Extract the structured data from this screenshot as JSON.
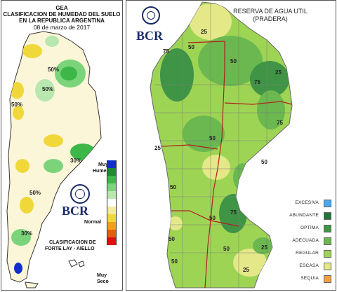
{
  "left_map": {
    "title_lines": [
      "GEA",
      "CLASIFICACION DE HUMEDAD DEL SUELO",
      "EN LA REPUBLICA ARGENTINA"
    ],
    "date": "08 de marzo de 2017",
    "labels": {
      "very_wet_1": "Muy",
      "very_wet_2": "Humedo",
      "normal": "Normal",
      "very_dry_1": "Muy",
      "very_dry_2": "Seco"
    },
    "classification_line1": "CLASIFICACION DE",
    "classification_line2": "FORTE LAY - AIELLO",
    "logo_text": "BCR",
    "isolines": [
      "50%",
      "50%",
      "50%",
      "30%",
      "30%",
      "50%"
    ],
    "scale_colors": [
      "#1030c8",
      "#1f8a2e",
      "#3bb848",
      "#7cd47a",
      "#b8e8b0",
      "#ffffff",
      "#f3ec9a",
      "#f0d83a",
      "#f0a020",
      "#e06010",
      "#e01010"
    ]
  },
  "right_map": {
    "title_line1": "RESERVA DE AGUA UTIL",
    "title_line2": "(PRADERA)",
    "logo_text": "BCR",
    "legend": [
      {
        "label": "EXCESIVA",
        "color": "#49a8f0"
      },
      {
        "label": "ABUNDANTE",
        "color": "#24733a"
      },
      {
        "label": "OPTIMA",
        "color": "#3f9446"
      },
      {
        "label": "ADECUADA",
        "color": "#6ab84f"
      },
      {
        "label": "REGULAR",
        "color": "#9ed454"
      },
      {
        "label": "ESCASA",
        "color": "#e4e888"
      },
      {
        "label": "SEQUIA",
        "color": "#f0a040"
      }
    ],
    "isolines": [
      "25",
      "50",
      "50",
      "75",
      "75",
      "75",
      "25",
      "50",
      "25",
      "50",
      "50",
      "50",
      "75",
      "50",
      "25",
      "25",
      "50",
      "50"
    ]
  }
}
